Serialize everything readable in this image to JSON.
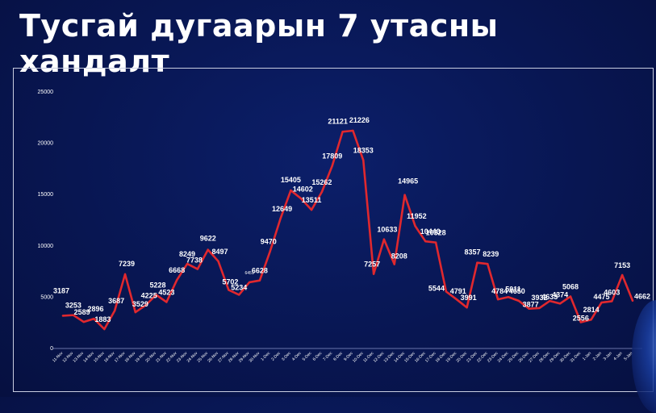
{
  "title": "Тусгай дугаарын 7 утасны хандалт",
  "colors": {
    "line": "#e0282e",
    "text": "#ffffff",
    "axis": "#8a94c8"
  },
  "chart_data": {
    "type": "line",
    "title": "",
    "xlabel": "",
    "ylabel": "",
    "ylim": [
      0,
      25000
    ],
    "yticks": [
      "0",
      "5000",
      "10000",
      "15000",
      "20000",
      "25000"
    ],
    "grid": false,
    "categories": [
      "11-Nov",
      "12-Nov",
      "13-Nov",
      "14-Nov",
      "15-Nov",
      "16-Nov",
      "17-Nov",
      "18-Nov",
      "19-Nov",
      "20-Nov",
      "21-Nov",
      "22-Nov",
      "23-Nov",
      "24-Nov",
      "25-Nov",
      "26-Nov",
      "27-Nov",
      "28-Nov",
      "29-Nov",
      "30-Nov",
      "1-Dec",
      "2-Dec",
      "3-Dec",
      "4-Dec",
      "5-Dec",
      "6-Dec",
      "7-Dec",
      "8-Dec",
      "9-Dec",
      "10-Dec",
      "11-Dec",
      "12-Dec",
      "13-Dec",
      "14-Dec",
      "15-Dec",
      "16-Dec",
      "17-Dec",
      "18-Dec",
      "19-Dec",
      "20-Dec",
      "21-Dec",
      "22-Dec",
      "23-Dec",
      "24-Dec",
      "25-Dec",
      "26-Dec",
      "27-Dec",
      "28-Dec",
      "29-Dec",
      "30-Dec",
      "31-Dec",
      "1-Jan",
      "2-Jan",
      "3-Jan",
      "4-Jan",
      "5-Jan"
    ],
    "series": [
      {
        "values": [
          3187,
          3253,
          2589,
          2896,
          1883,
          3687,
          7239,
          3529,
          4225,
          5228,
          4523,
          6668,
          8249,
          7738,
          9622,
          8497,
          5702,
          5234,
          6451,
          6628,
          9470,
          12649,
          15405,
          14602,
          13511,
          15262,
          17809,
          21121,
          21226,
          18353,
          7257,
          10633,
          8208,
          14965,
          11952,
          10440,
          10328,
          5544,
          4791,
          3991,
          8357,
          8239,
          4784,
          5011,
          4650,
          3877,
          3932,
          4633,
          4374,
          5068,
          2556,
          2814,
          4475,
          4603,
          7153,
          4662
        ]
      }
    ]
  }
}
